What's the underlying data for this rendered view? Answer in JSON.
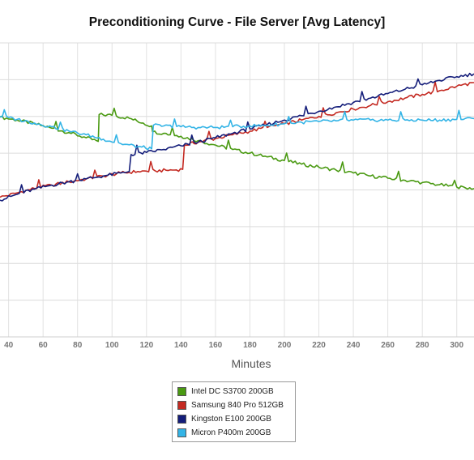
{
  "chart_data": {
    "type": "line",
    "title": "Preconditioning Curve - File Server [Avg Latency]",
    "xlabel": "Minutes",
    "ylabel": "",
    "xlim": [
      35,
      310
    ],
    "ylim": [
      0,
      8
    ],
    "x_ticks": [
      40,
      60,
      80,
      100,
      120,
      140,
      160,
      180,
      200,
      220,
      240,
      260,
      280,
      300
    ],
    "y_gridlines": [
      1,
      2,
      3,
      4,
      5,
      6,
      7,
      8
    ],
    "grid": true,
    "legend_position": "bottom-center",
    "series": [
      {
        "name": "Intel DC S3700 200GB",
        "color": "#4a9a12",
        "points": [
          [
            35,
            5.98
          ],
          [
            45,
            5.9
          ],
          [
            55,
            5.8
          ],
          [
            65,
            5.68
          ],
          [
            75,
            5.56
          ],
          [
            85,
            5.42
          ],
          [
            92,
            5.32
          ],
          [
            92.5,
            6.05
          ],
          [
            100,
            6.03
          ],
          [
            110,
            5.95
          ],
          [
            118,
            5.82
          ],
          [
            123,
            5.74
          ],
          [
            123.5,
            5.58
          ],
          [
            130,
            5.54
          ],
          [
            140,
            5.46
          ],
          [
            150,
            5.34
          ],
          [
            160,
            5.22
          ],
          [
            170,
            5.1
          ],
          [
            180,
            5.0
          ],
          [
            190,
            4.9
          ],
          [
            200,
            4.8
          ],
          [
            210,
            4.7
          ],
          [
            220,
            4.62
          ],
          [
            230,
            4.54
          ],
          [
            240,
            4.46
          ],
          [
            250,
            4.38
          ],
          [
            260,
            4.32
          ],
          [
            270,
            4.26
          ],
          [
            280,
            4.2
          ],
          [
            290,
            4.14
          ],
          [
            300,
            4.08
          ],
          [
            310,
            4.04
          ]
        ]
      },
      {
        "name": "Samsung 840 Pro 512GB",
        "color": "#c42a22",
        "points": [
          [
            35,
            3.8
          ],
          [
            45,
            3.92
          ],
          [
            55,
            4.04
          ],
          [
            65,
            4.13
          ],
          [
            75,
            4.22
          ],
          [
            85,
            4.3
          ],
          [
            95,
            4.38
          ],
          [
            105,
            4.46
          ],
          [
            115,
            4.5
          ],
          [
            125,
            4.52
          ],
          [
            135,
            4.54
          ],
          [
            141,
            4.56
          ],
          [
            142,
            5.22
          ],
          [
            150,
            5.3
          ],
          [
            160,
            5.4
          ],
          [
            170,
            5.5
          ],
          [
            180,
            5.6
          ],
          [
            190,
            5.7
          ],
          [
            200,
            5.8
          ],
          [
            210,
            5.9
          ],
          [
            220,
            6.0
          ],
          [
            230,
            6.1
          ],
          [
            240,
            6.2
          ],
          [
            250,
            6.3
          ],
          [
            260,
            6.4
          ],
          [
            270,
            6.5
          ],
          [
            280,
            6.6
          ],
          [
            290,
            6.7
          ],
          [
            300,
            6.82
          ],
          [
            310,
            6.92
          ]
        ]
      },
      {
        "name": "Kingston E100 200GB",
        "color": "#141d7a",
        "points": [
          [
            35,
            3.72
          ],
          [
            45,
            3.88
          ],
          [
            55,
            4.02
          ],
          [
            65,
            4.13
          ],
          [
            75,
            4.22
          ],
          [
            85,
            4.3
          ],
          [
            95,
            4.38
          ],
          [
            105,
            4.46
          ],
          [
            110,
            4.5
          ],
          [
            111,
            4.96
          ],
          [
            120,
            5.02
          ],
          [
            130,
            5.1
          ],
          [
            140,
            5.2
          ],
          [
            150,
            5.3
          ],
          [
            160,
            5.42
          ],
          [
            170,
            5.54
          ],
          [
            180,
            5.66
          ],
          [
            190,
            5.78
          ],
          [
            200,
            5.9
          ],
          [
            210,
            6.02
          ],
          [
            220,
            6.14
          ],
          [
            230,
            6.26
          ],
          [
            240,
            6.38
          ],
          [
            250,
            6.5
          ],
          [
            260,
            6.62
          ],
          [
            270,
            6.74
          ],
          [
            280,
            6.86
          ],
          [
            290,
            6.98
          ],
          [
            300,
            7.08
          ],
          [
            310,
            7.16
          ]
        ]
      },
      {
        "name": "Micron P400m 200GB",
        "color": "#33b4e6",
        "points": [
          [
            35,
            6.0
          ],
          [
            45,
            5.92
          ],
          [
            55,
            5.82
          ],
          [
            65,
            5.72
          ],
          [
            75,
            5.6
          ],
          [
            85,
            5.5
          ],
          [
            95,
            5.38
          ],
          [
            105,
            5.26
          ],
          [
            115,
            5.18
          ],
          [
            123,
            5.12
          ],
          [
            124,
            5.76
          ],
          [
            130,
            5.74
          ],
          [
            140,
            5.72
          ],
          [
            150,
            5.7
          ],
          [
            160,
            5.7
          ],
          [
            170,
            5.72
          ],
          [
            180,
            5.74
          ],
          [
            190,
            5.76
          ],
          [
            200,
            5.8
          ],
          [
            210,
            5.84
          ],
          [
            220,
            5.86
          ],
          [
            230,
            5.88
          ],
          [
            240,
            5.9
          ],
          [
            250,
            5.9
          ],
          [
            260,
            5.9
          ],
          [
            270,
            5.9
          ],
          [
            280,
            5.9
          ],
          [
            290,
            5.9
          ],
          [
            300,
            5.92
          ],
          [
            310,
            5.94
          ]
        ]
      }
    ]
  }
}
